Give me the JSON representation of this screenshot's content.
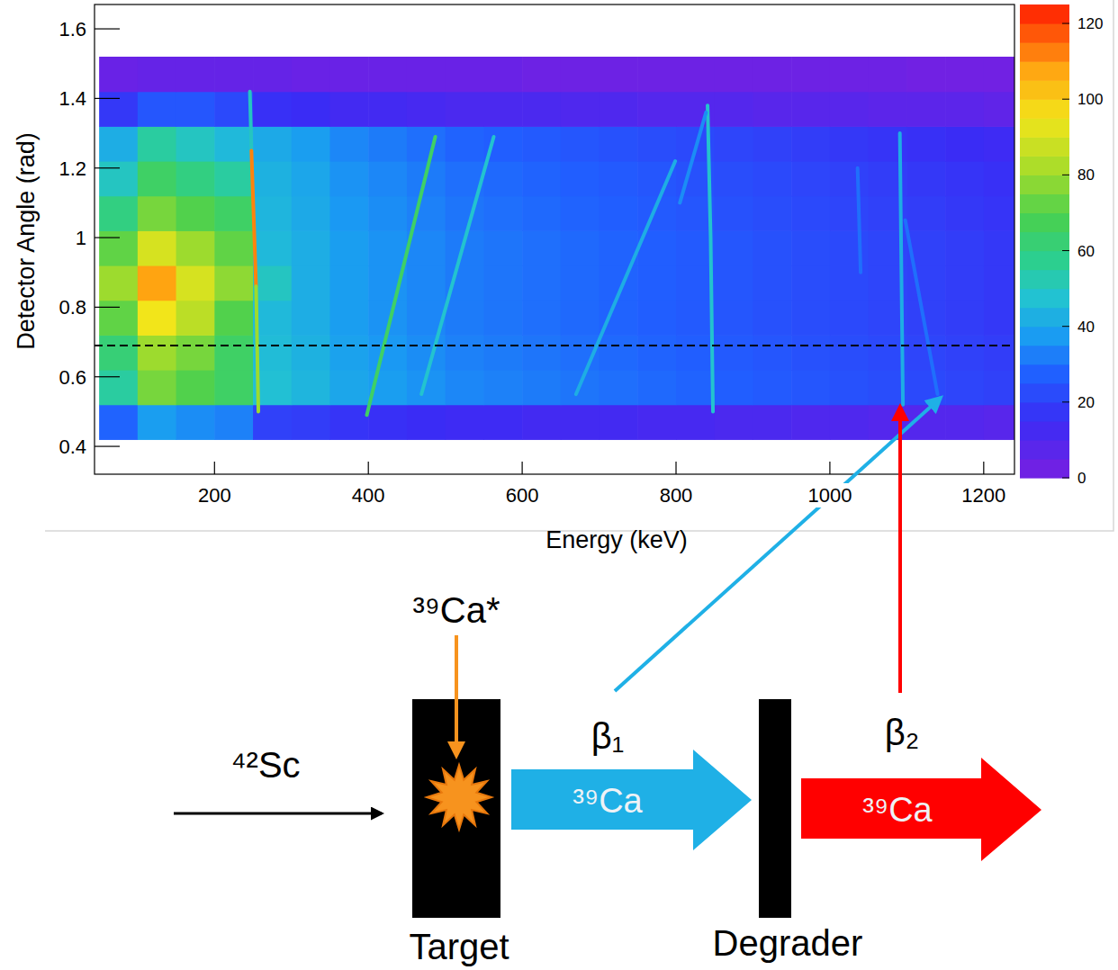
{
  "chart_data": {
    "type": "heatmap",
    "x_label": "Energy (keV)",
    "y_label": "Detector Angle (rad)",
    "xlim": [
      44,
      1240
    ],
    "ylim": [
      0.32,
      1.67
    ],
    "xticks": [
      200,
      400,
      600,
      800,
      1000,
      1200
    ],
    "yticks": [
      0.4,
      0.6,
      0.8,
      1,
      1.2,
      1.4,
      1.6
    ],
    "x_bins": [
      50,
      100,
      150,
      200,
      250,
      300,
      350,
      400,
      450,
      500,
      550,
      600,
      650,
      700,
      750,
      800,
      850,
      900,
      950,
      1000,
      1050,
      1100,
      1150,
      1200,
      1250
    ],
    "y_bins": [
      0.42,
      0.52,
      0.62,
      0.72,
      0.82,
      0.92,
      1.02,
      1.12,
      1.22,
      1.32,
      1.42,
      1.52
    ],
    "cells": [
      [
        28,
        38,
        35,
        33,
        20,
        19,
        17,
        16,
        15,
        14,
        14,
        13,
        13,
        13,
        12,
        12,
        11,
        11,
        10,
        10,
        9,
        9,
        9,
        8
      ],
      [
        55,
        75,
        70,
        65,
        47,
        44,
        40,
        38,
        36,
        34,
        33,
        32,
        31,
        30,
        29,
        28,
        27,
        26,
        25,
        24,
        23,
        22,
        21,
        20
      ],
      [
        62,
        80,
        75,
        65,
        46,
        43,
        39,
        37,
        35,
        33,
        32,
        31,
        30,
        29,
        28,
        27,
        26,
        25,
        24,
        23,
        22,
        21,
        20,
        19
      ],
      [
        72,
        95,
        85,
        70,
        45,
        42,
        38,
        36,
        34,
        32,
        31,
        30,
        29,
        28,
        27,
        26,
        25,
        24,
        23,
        22,
        21,
        20,
        19,
        18
      ],
      [
        80,
        108,
        90,
        78,
        50,
        42,
        38,
        36,
        34,
        32,
        31,
        30,
        29,
        28,
        27,
        26,
        25,
        24,
        23,
        22,
        21,
        20,
        19,
        18
      ],
      [
        72,
        90,
        80,
        72,
        45,
        42,
        38,
        36,
        34,
        32,
        31,
        30,
        29,
        28,
        27,
        26,
        25,
        24,
        23,
        22,
        21,
        20,
        19,
        18
      ],
      [
        60,
        75,
        70,
        65,
        44,
        41,
        37,
        35,
        33,
        31,
        30,
        29,
        28,
        27,
        26,
        25,
        24,
        23,
        22,
        21,
        20,
        19,
        18,
        17
      ],
      [
        50,
        65,
        60,
        55,
        43,
        40,
        36,
        34,
        32,
        30,
        29,
        28,
        27,
        26,
        25,
        24,
        23,
        22,
        21,
        20,
        19,
        18,
        17,
        16
      ],
      [
        42,
        55,
        50,
        45,
        41,
        38,
        34,
        32,
        30,
        28,
        27,
        26,
        25,
        24,
        23,
        22,
        21,
        20,
        19,
        18,
        17,
        16,
        15,
        14
      ],
      [
        18,
        25,
        25,
        22,
        16,
        15,
        13,
        13,
        12,
        11,
        11,
        11,
        10,
        10,
        9,
        9,
        9,
        8,
        8,
        8,
        7,
        7,
        7,
        6
      ],
      [
        4,
        5,
        5,
        5,
        5,
        4,
        4,
        4,
        4,
        4,
        4,
        3,
        3,
        3,
        3,
        3,
        3,
        3,
        3,
        3,
        3,
        2,
        2,
        2
      ]
    ],
    "lines": [
      {
        "x": [
          246,
          248
        ],
        "y": [
          1.42,
          1.25
        ],
        "count": 50
      },
      {
        "x": [
          248,
          254
        ],
        "y": [
          1.25,
          0.86
        ],
        "count": 112
      },
      {
        "x": [
          254,
          257
        ],
        "y": [
          0.86,
          0.5
        ],
        "count": 80
      },
      {
        "x": [
          398,
          487
        ],
        "y": [
          0.49,
          1.29
        ],
        "count": 65
      },
      {
        "x": [
          469,
          563
        ],
        "y": [
          0.55,
          1.29
        ],
        "count": 48
      },
      {
        "x": [
          670,
          799
        ],
        "y": [
          0.55,
          1.22
        ],
        "count": 42
      },
      {
        "x": [
          848,
          845,
          841
        ],
        "y": [
          0.5,
          1.0,
          1.38
        ],
        "count": 48
      },
      {
        "x": [
          805,
          839
        ],
        "y": [
          1.1,
          1.36
        ],
        "count": 35
      },
      {
        "x": [
          1095,
          1093,
          1091
        ],
        "y": [
          0.52,
          0.9,
          1.3
        ],
        "count": 42
      },
      {
        "x": [
          1098,
          1140
        ],
        "y": [
          1.05,
          0.55
        ],
        "count": 30
      },
      {
        "x": [
          1036,
          1040
        ],
        "y": [
          1.2,
          0.9
        ],
        "count": 30
      }
    ],
    "reference_line": {
      "y": 0.69,
      "line_style": "dashed"
    },
    "colorbar": {
      "range": [
        0,
        125
      ],
      "ticks": [
        0,
        20,
        40,
        60,
        80,
        100,
        120
      ]
    }
  },
  "diagram": {
    "beam": "⁴²Sc",
    "excited": "³⁹Ca*",
    "product_1": "³⁹Ca",
    "product_2": "³⁹Ca",
    "beta_1": "β₁",
    "beta_2": "β₂",
    "target": "Target",
    "degrader": "Degrader"
  }
}
